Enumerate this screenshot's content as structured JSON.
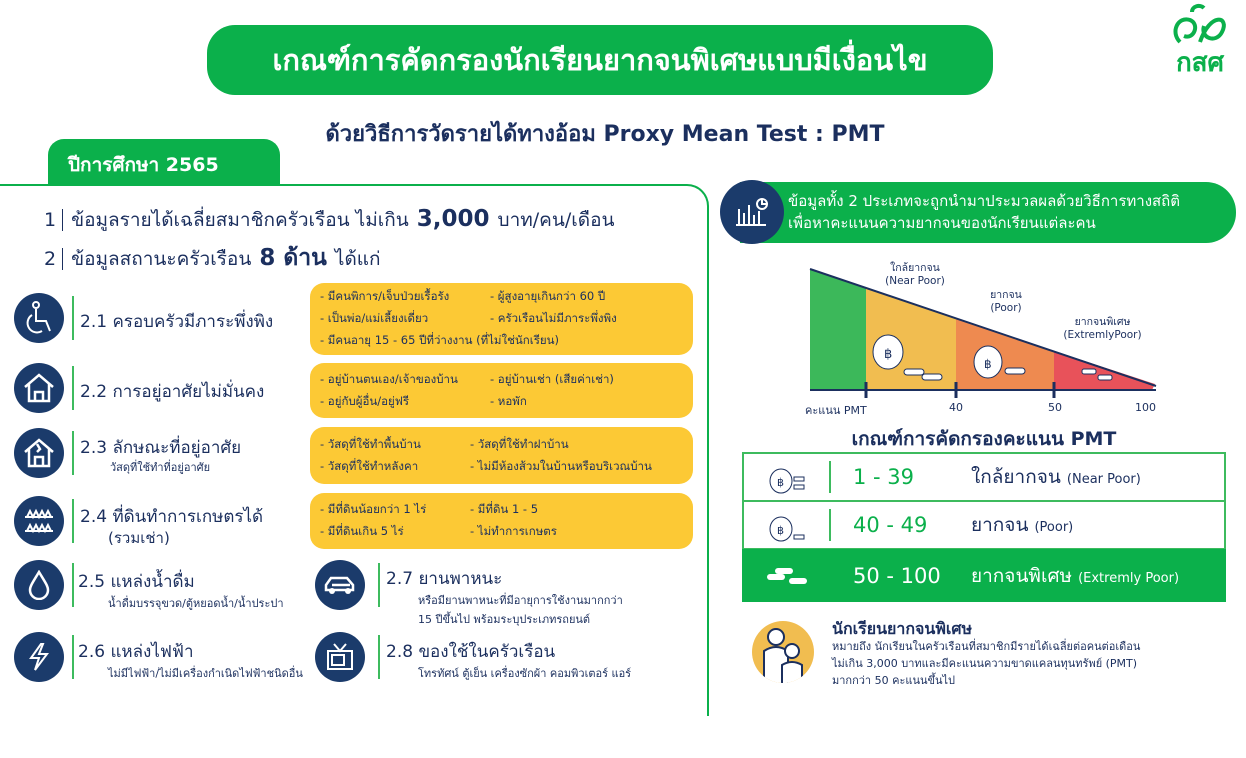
{
  "header": {
    "title": "เกณฑ์การคัดกรองนักเรียนยากจนพิเศษแบบมีเงื่อนไข",
    "subtitle": "ด้วยวิธีการวัดรายได้ทางอ้อม Proxy Mean Test : PMT",
    "logo_text": "กสศ",
    "year_tab": "ปีการศึกษา 2565"
  },
  "criteria": [
    {
      "num": "1",
      "text": "ข้อมูลรายได้เฉลี่ยสมาชิกครัวเรือน ไม่เกิน",
      "bold": "3,000",
      "suffix": "บาท/คน/เดือน"
    },
    {
      "num": "2",
      "text": "ข้อมูลสถานะครัวเรือน",
      "bold": "8 ด้าน",
      "suffix": "ได้แก่"
    }
  ],
  "categories": [
    {
      "title": "2.1 ครอบครัวมีภาระพึ่งพิง",
      "icon": "wheelchair-icon",
      "items": [
        "- มีคนพิการ/เจ็บป่วยเรื้อรัง",
        "- ผู้สูงอายุเกินกว่า 60 ปี",
        "- เป็นพ่อ/แม่เลี้ยงเดี่ยว",
        "- ครัวเรือนไม่มีภาระพึ่งพิง",
        "- มีคนอายุ 15 - 65 ปีที่ว่างงาน (ที่ไม่ใช่นักเรียน)"
      ]
    },
    {
      "title": "2.2 การอยู่อาศัยไม่มั่นคง",
      "icon": "house-icon",
      "items": [
        "- อยู่บ้านตนเอง/เจ้าของบ้าน",
        "- อยู่บ้านเช่า (เสียค่าเช่า)",
        "- อยู่กับผู้อื่น/อยู่ฟรี",
        "- หอพัก"
      ]
    },
    {
      "title": "2.3 ลักษณะที่อยู่อาศัย",
      "sub": "วัสดุที่ใช้ทำที่อยู่อาศัย",
      "icon": "broken-house-icon",
      "items": [
        "- วัสดุที่ใช้ทำพื้นบ้าน",
        "- วัสดุที่ใช้ทำฝาบ้าน",
        "- วัสดุที่ใช้ทำหลังคา",
        "- ไม่มีห้องส้วมในบ้านหรือบริเวณบ้าน"
      ]
    },
    {
      "title": "2.4 ที่ดินทำการเกษตรได้",
      "sub": "(รวมเช่า)",
      "icon": "farmland-icon",
      "items": [
        "- มีที่ดินน้อยกว่า 1 ไร่",
        "- มีที่ดิน 1 - 5",
        "- มีที่ดินเกิน 5 ไร่",
        "- ไม่ทำการเกษตร"
      ]
    },
    {
      "title": "2.5 แหล่งน้ำดื่ม",
      "sub": "น้ำดื่มบรรจุขวด/ตู้หยอดน้ำ/น้ำประปา",
      "icon": "water-drop-icon"
    },
    {
      "title": "2.6 แหล่งไฟฟ้า",
      "sub": "ไม่มีไฟฟ้า/ไม่มีเครื่องกำเนิดไฟฟ้าชนิดอื่น",
      "icon": "lightning-icon"
    },
    {
      "title": "2.7 ยานพาหนะ",
      "sub": "หรือมียานพาหนะที่มีอายุการใช้งานมากกว่า",
      "sub2": "15 ปีขึ้นไป พร้อมระบุประเภทรถยนต์",
      "icon": "car-icon"
    },
    {
      "title": "2.8 ของใช้ในครัวเรือน",
      "sub": "โทรทัศน์ ตู้เย็น เครื่องซักผ้า คอมพิวเตอร์ แอร์",
      "icon": "tv-icon"
    }
  ],
  "right": {
    "banner": [
      "ข้อมูลทั้ง 2 ประเภทจะถูกนำมาประมวลผลด้วยวิธีการทางสถิติ",
      "เพื่อหาคะแนนความยากจนของนักเรียนแต่ละคน"
    ],
    "diagram": {
      "axis_label": "คะแนน PMT",
      "ticks": [
        "40",
        "50",
        "100"
      ],
      "bands": [
        {
          "color": "#3cb85a"
        },
        {
          "label": "ใกล้ยากจน",
          "label_en": "(Near Poor)",
          "color": "#f1bd50"
        },
        {
          "label": "ยากจน",
          "label_en": "(Poor)",
          "color": "#ee8a50"
        },
        {
          "label": "ยากจนพิเศษ",
          "label_en": "(ExtremlyPoor)",
          "color": "#e8525a"
        }
      ]
    },
    "table": {
      "title": "เกณฑ์การคัดกรองคะแนน PMT",
      "rows": [
        {
          "range": "1 -  39",
          "label": "ใกล้ยากจน",
          "label_en": "(Near Poor)",
          "highlight": false
        },
        {
          "range": "40 -  49",
          "label": "ยากจน",
          "label_en": "(Poor)",
          "highlight": false
        },
        {
          "range": "50 - 100",
          "label": "ยากจนพิเศษ",
          "label_en": "(Extremly Poor)",
          "highlight": true
        }
      ]
    },
    "definition": {
      "title": "นักเรียนยากจนพิเศษ",
      "lines": [
        "หมายถึง นักเรียนในครัวเรือนที่สมาชิกมีรายได้เฉลี่ยต่อคนต่อเดือน",
        "ไม่เกิน 3,000 บาทและมีคะแนนความขาดแคลนทุนทรัพย์ (PMT)",
        "มากกว่า 50 คะแนนขึ้นไป"
      ]
    }
  },
  "colors": {
    "green": "#0bb04b",
    "navy": "#1b2f5e",
    "yellow": "#fcc935"
  }
}
